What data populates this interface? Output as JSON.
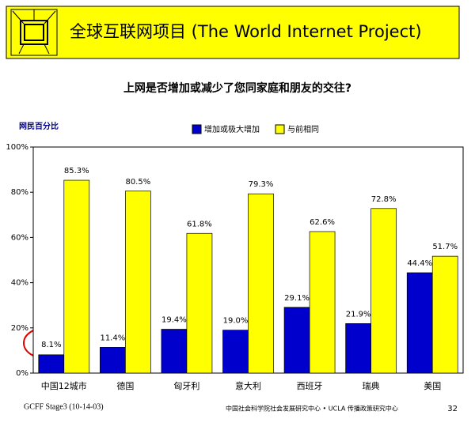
{
  "chart_data": {
    "type": "bar",
    "title": "全球互联网项目 (The World Internet Project)",
    "subtitle": "上网是否增加或减少了您同家庭和朋友的交往?",
    "y_label": "网民百分比",
    "categories": [
      "中国12城市",
      "德国",
      "匈牙利",
      "意大利",
      "西班牙",
      "瑞典",
      "美国"
    ],
    "series": [
      {
        "name": "增加或极大增加",
        "color": "#0000cc",
        "values": [
          8.1,
          11.4,
          19.4,
          19.0,
          29.1,
          21.9,
          44.4
        ],
        "value_labels": [
          "8.1%",
          "11.4%",
          "19.4%",
          "19.0%",
          "29.1%",
          "21.9%",
          "44.4%"
        ]
      },
      {
        "name": "与前相同",
        "color": "#ffff00",
        "values": [
          85.3,
          80.5,
          61.8,
          79.3,
          62.6,
          72.8,
          51.7
        ],
        "value_labels": [
          "85.3%",
          "80.5%",
          "61.8%",
          "79.3%",
          "62.6%",
          "72.8%",
          "51.7%"
        ]
      }
    ],
    "ylim": [
      0,
      100
    ],
    "yticks": [
      {
        "value": 0,
        "label": "0%"
      },
      {
        "value": 20,
        "label": "20%"
      },
      {
        "value": 40,
        "label": "40%"
      },
      {
        "value": 60,
        "label": "60%"
      },
      {
        "value": 80,
        "label": "80%"
      },
      {
        "value": 100,
        "label": "100%"
      }
    ]
  },
  "footer": {
    "left": "GCFF Stage3 (10-14-03)",
    "center": "中国社会科学院社会发展研究中心 • UCLA 传播政策研究中心",
    "page": "32"
  }
}
